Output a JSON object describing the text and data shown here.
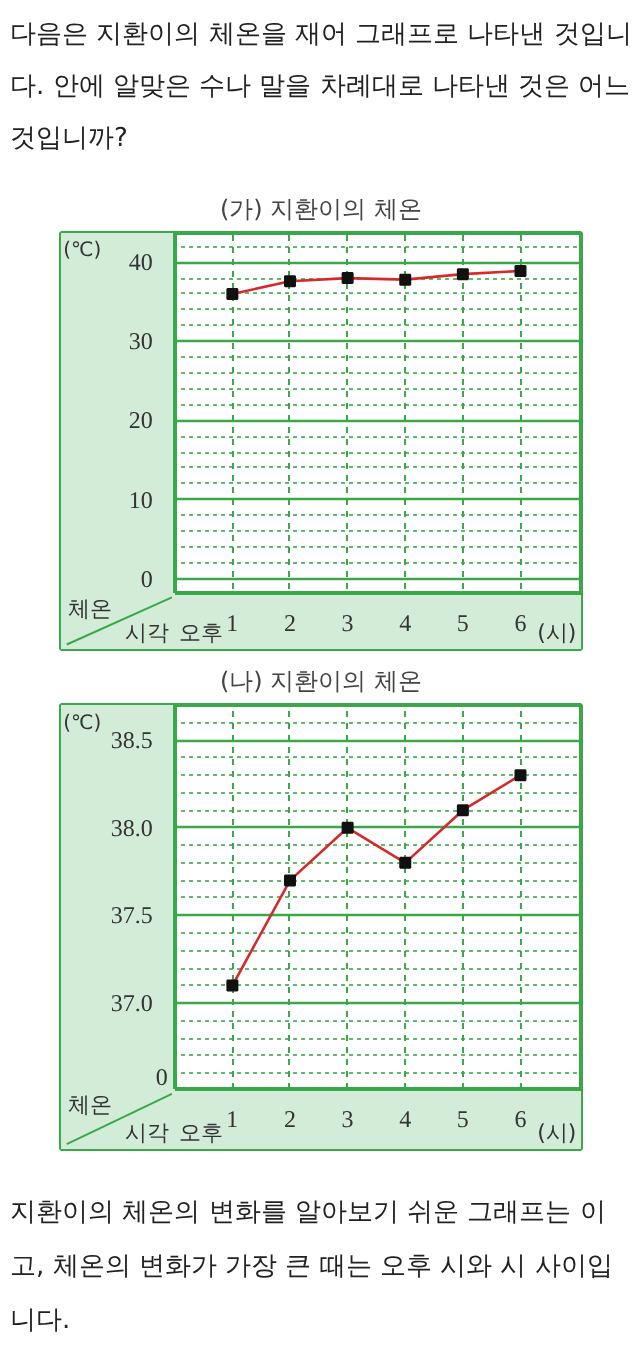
{
  "chart_data": [
    {
      "type": "line",
      "title": "(가) 지환이의 체온",
      "ylabel": "(℃)",
      "xlabel": "(시)",
      "annotations": [
        "다음은 지환이의 체온을 재어 그래프로 나타낸 것입니다. 안에 알맞은 수나 말을 차례대로 나타낸 것은 어느 것입니까?",
        "체온",
        "시각",
        "오후"
      ],
      "x": [
        1,
        2,
        3,
        4,
        5,
        6
      ],
      "xlim": [
        0,
        7.05
      ],
      "xticks": [
        1,
        2,
        3,
        4,
        5,
        6
      ],
      "ylim": [
        -1.8,
        43.7
      ],
      "yticks": [
        0,
        10,
        20,
        30,
        40
      ],
      "series": [
        {
          "color": "#d42a2a",
          "values": [
            36,
            37.6,
            38,
            37.8,
            38.5,
            38.9
          ]
        }
      ],
      "marker": "square",
      "grid": true
    },
    {
      "type": "line",
      "title": "(나) 지환이의 체온",
      "ylabel": "(℃)",
      "xlabel": "(시)",
      "annotations": [
        "0",
        "체온",
        "시각",
        "오후",
        "지환이의 체온의 변화를 알아보기 쉬운 그래프는 이고, 체온의 변화가 가장 큰 때는 오후 시와 시 사이입니다."
      ],
      "x": [
        1,
        2,
        3,
        4,
        5,
        6
      ],
      "xlim": [
        0,
        7.05
      ],
      "xticks": [
        1,
        2,
        3,
        4,
        5,
        6
      ],
      "ylim": [
        36.51,
        38.7
      ],
      "yticks": [
        {
          "value": 37,
          "label": "37.0"
        },
        37.5,
        {
          "value": 38,
          "label": "38.0"
        },
        38.5
      ],
      "series": [
        {
          "color": "#d42a2a",
          "values": [
            37.1,
            37.7,
            38.0,
            37.8,
            38.1,
            38.3
          ]
        }
      ],
      "marker": "square",
      "grid": true
    }
  ]
}
